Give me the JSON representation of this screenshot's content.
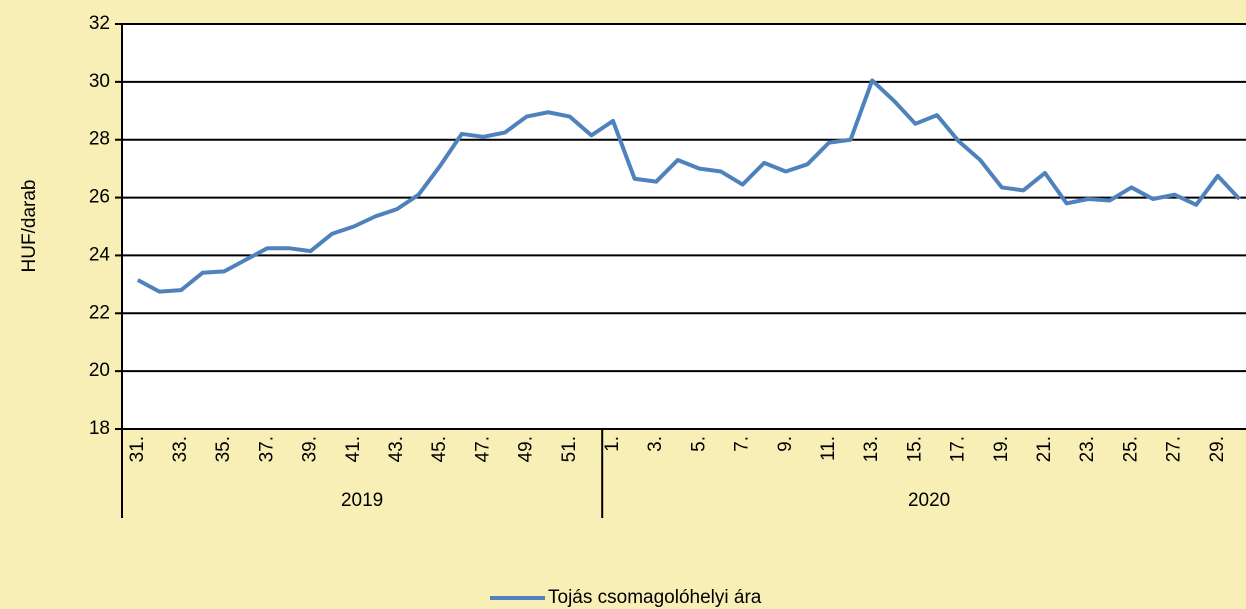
{
  "chart_data": {
    "type": "line",
    "y_label": "HUF/darab",
    "categories": [
      "31.",
      null,
      "33.",
      null,
      "35.",
      null,
      "37.",
      null,
      "39.",
      null,
      "41.",
      null,
      "43.",
      null,
      "45.",
      null,
      "47.",
      null,
      "49.",
      null,
      "51.",
      null,
      "1.",
      null,
      "3.",
      null,
      "5.",
      null,
      "7.",
      null,
      "9.",
      null,
      "11.",
      null,
      "13.",
      null,
      "15.",
      null,
      "17.",
      null,
      "19.",
      null,
      "21.",
      null,
      "23.",
      null,
      "25.",
      null,
      "27.",
      null,
      "29.",
      null
    ],
    "groups": [
      "2019",
      "2020"
    ],
    "series": [
      {
        "name": "Tojás csomagolóhelyi ára",
        "color": "#4f81bd",
        "values": [
          23.15,
          22.75,
          22.8,
          23.4,
          23.45,
          23.85,
          24.25,
          24.25,
          24.15,
          24.75,
          25.0,
          25.35,
          25.6,
          26.1,
          27.1,
          28.2,
          28.1,
          28.25,
          28.8,
          28.95,
          28.8,
          28.15,
          28.65,
          26.65,
          26.55,
          27.3,
          27.0,
          26.9,
          26.45,
          27.2,
          26.9,
          27.15,
          27.9,
          28.0,
          30.05,
          29.35,
          28.55,
          28.85,
          27.95,
          27.3,
          26.35,
          26.25,
          26.85,
          25.8,
          25.95,
          25.9,
          26.35,
          25.95,
          26.1,
          25.75,
          26.75,
          25.95
        ]
      }
    ],
    "ylim": [
      18,
      32
    ],
    "yticks": [
      18,
      20,
      22,
      24,
      26,
      28,
      30,
      32
    ],
    "grid": true,
    "legend": "bottom"
  }
}
